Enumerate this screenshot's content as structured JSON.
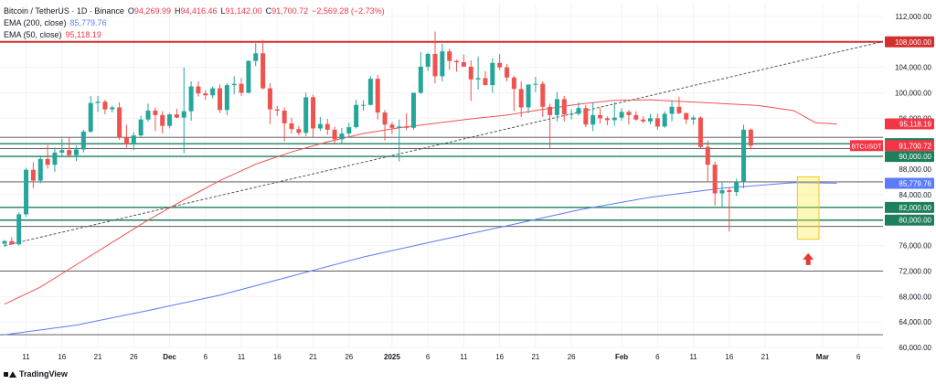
{
  "legend": {
    "symbol": "Bitcoin / TetherUS · 1D · Binance",
    "o_label": "O",
    "o_value": "94,269.99",
    "h_label": "H",
    "h_value": "94,416.46",
    "l_label": "L",
    "l_value": "91,142.00",
    "c_label": "C",
    "c_value": "91,700.72",
    "change": "−2,569.28 (−2.73%)",
    "ema200_label": "EMA (200, close)",
    "ema200_value": "85,779.76",
    "ema50_label": "EMA (50, close)",
    "ema50_value": "95,118.19"
  },
  "branding": {
    "text": "TradingView"
  },
  "colors": {
    "up": "#26a69a",
    "down": "#ef5350",
    "ema200": "#5b7cfa",
    "ema50": "#ef5350",
    "resistance": "#d32f2f",
    "support": "#1e7f5c"
  },
  "chart_data": {
    "type": "candlestick",
    "ylim": [
      60000,
      114000
    ],
    "y_ticks": [
      112000,
      108000,
      104000,
      100000,
      96000,
      92000,
      88000,
      84000,
      80000,
      76000,
      72000,
      68000,
      64000,
      60000
    ],
    "y_tick_labels": [
      "112,000.00",
      "108,000.00",
      "104,000.00",
      "100,000.00",
      "96,000.00",
      "92,000.00",
      "88,000.00",
      "84,000.00",
      "80,000.00",
      "76,000.00",
      "72,000.00",
      "68,000.00",
      "64,000.00",
      "60,000.00"
    ],
    "x_ticks": [
      {
        "label": "11",
        "i": 3
      },
      {
        "label": "16",
        "i": 8
      },
      {
        "label": "21",
        "i": 13
      },
      {
        "label": "26",
        "i": 18
      },
      {
        "label": "Dec",
        "i": 23
      },
      {
        "label": "6",
        "i": 28
      },
      {
        "label": "11",
        "i": 33
      },
      {
        "label": "16",
        "i": 38
      },
      {
        "label": "21",
        "i": 43
      },
      {
        "label": "26",
        "i": 48
      },
      {
        "label": "2025",
        "i": 54
      },
      {
        "label": "6",
        "i": 59
      },
      {
        "label": "11",
        "i": 64
      },
      {
        "label": "16",
        "i": 69
      },
      {
        "label": "21",
        "i": 74
      },
      {
        "label": "26",
        "i": 79
      },
      {
        "label": "Feb",
        "i": 86
      },
      {
        "label": "6",
        "i": 91
      },
      {
        "label": "11",
        "i": 96
      },
      {
        "label": "16",
        "i": 101
      },
      {
        "label": "21",
        "i": 106
      },
      {
        "label": "Mar",
        "i": 114
      },
      {
        "label": "6",
        "i": 119
      }
    ],
    "levels": [
      {
        "value": 108000,
        "label": "108,000.00",
        "kind": "resistance"
      },
      {
        "value": 92000,
        "label": "92,000.00",
        "kind": "support"
      },
      {
        "value": 90000,
        "label": "90,000.00",
        "kind": "support"
      },
      {
        "value": 82000,
        "label": "82,000.00",
        "kind": "support"
      },
      {
        "value": 80000,
        "label": "80,000.00",
        "kind": "support"
      },
      {
        "value": 93000,
        "label": "",
        "kind": "neutral"
      },
      {
        "value": 91250,
        "label": "",
        "kind": "neutral"
      },
      {
        "value": 86000,
        "label": "",
        "kind": "neutral"
      },
      {
        "value": 79000,
        "label": "",
        "kind": "neutral"
      },
      {
        "value": 72000,
        "label": "",
        "kind": "neutral"
      },
      {
        "value": 62000,
        "label": "",
        "kind": "neutral"
      }
    ],
    "price_tags": [
      {
        "value": 95118.19,
        "label": "95,118.19",
        "color": "#f23645"
      },
      {
        "value": 91700.72,
        "label": "91,700.72",
        "color": "#f23645",
        "badge": "BTCUSDT"
      },
      {
        "value": 85779.76,
        "label": "85,779.76",
        "color": "#5b7cfa"
      }
    ],
    "trendline": {
      "from": {
        "i": 0,
        "price": 76000
      },
      "to": {
        "i": 123,
        "price": 108200
      }
    },
    "highlight": {
      "i_from": 111,
      "i_to": 113,
      "low": 77000,
      "high": 86800
    },
    "arrow": {
      "i": 112,
      "price": 73800
    },
    "ema200": [
      [
        0,
        62000
      ],
      [
        10,
        63500
      ],
      [
        20,
        65800
      ],
      [
        30,
        68200
      ],
      [
        40,
        71200
      ],
      [
        50,
        74200
      ],
      [
        60,
        76700
      ],
      [
        70,
        79100
      ],
      [
        80,
        81600
      ],
      [
        90,
        83600
      ],
      [
        100,
        85000
      ],
      [
        110,
        85900
      ],
      [
        116,
        85800
      ]
    ],
    "ema50": [
      [
        0,
        66800
      ],
      [
        5,
        69500
      ],
      [
        10,
        73000
      ],
      [
        15,
        76500
      ],
      [
        20,
        80000
      ],
      [
        25,
        83200
      ],
      [
        30,
        86200
      ],
      [
        35,
        88800
      ],
      [
        40,
        90700
      ],
      [
        45,
        92300
      ],
      [
        50,
        93600
      ],
      [
        55,
        94500
      ],
      [
        60,
        95200
      ],
      [
        65,
        95900
      ],
      [
        70,
        96500
      ],
      [
        75,
        97400
      ],
      [
        80,
        98200
      ],
      [
        85,
        98800
      ],
      [
        90,
        98900
      ],
      [
        95,
        98600
      ],
      [
        100,
        98300
      ],
      [
        105,
        98000
      ],
      [
        110,
        97200
      ],
      [
        113,
        95300
      ],
      [
        116,
        95100
      ]
    ],
    "candles": [
      [
        76300,
        76900,
        75800,
        76700
      ],
      [
        76700,
        77300,
        76100,
        76200
      ],
      [
        76200,
        81200,
        76000,
        80900
      ],
      [
        80900,
        88200,
        80500,
        87900
      ],
      [
        87900,
        89100,
        85000,
        86200
      ],
      [
        86200,
        90000,
        85800,
        89600
      ],
      [
        89600,
        91800,
        88100,
        88700
      ],
      [
        88700,
        91400,
        87600,
        90600
      ],
      [
        90600,
        92800,
        89900,
        91000
      ],
      [
        91000,
        93000,
        89800,
        90200
      ],
      [
        90200,
        91700,
        89300,
        91100
      ],
      [
        91100,
        94200,
        90600,
        93900
      ],
      [
        93900,
        99500,
        93700,
        98400
      ],
      [
        98400,
        99500,
        97000,
        98600
      ],
      [
        98600,
        98900,
        96600,
        97400
      ],
      [
        97400,
        98000,
        96900,
        97700
      ],
      [
        97700,
        98500,
        92600,
        93000
      ],
      [
        93000,
        95000,
        91400,
        92000
      ],
      [
        92000,
        93800,
        91000,
        93300
      ],
      [
        93300,
        96400,
        93100,
        95800
      ],
      [
        95800,
        98300,
        95500,
        97200
      ],
      [
        97200,
        97700,
        94000,
        96500
      ],
      [
        96500,
        97100,
        93600,
        94800
      ],
      [
        94800,
        96800,
        94400,
        96600
      ],
      [
        96600,
        97500,
        96000,
        96100
      ],
      [
        96100,
        104000,
        90500,
        97100
      ],
      [
        97100,
        101800,
        95600,
        101000
      ],
      [
        101000,
        101800,
        99400,
        99900
      ],
      [
        99900,
        100400,
        98900,
        99600
      ],
      [
        99600,
        101000,
        99100,
        100700
      ],
      [
        100700,
        101300,
        96800,
        97300
      ],
      [
        97300,
        101500,
        96500,
        101200
      ],
      [
        101200,
        102600,
        99800,
        101400
      ],
      [
        101400,
        102300,
        99500,
        100000
      ],
      [
        100000,
        105100,
        99900,
        105000
      ],
      [
        105000,
        107800,
        104200,
        106200
      ],
      [
        106200,
        108300,
        100500,
        100700
      ],
      [
        100700,
        101500,
        95100,
        97400
      ],
      [
        97400,
        97900,
        96400,
        97200
      ],
      [
        97200,
        97700,
        92400,
        95200
      ],
      [
        95200,
        96100,
        93600,
        94300
      ],
      [
        94300,
        94800,
        93300,
        93700
      ],
      [
        93700,
        100000,
        93200,
        99300
      ],
      [
        99300,
        99700,
        93000,
        94400
      ],
      [
        94400,
        96200,
        94000,
        95100
      ],
      [
        95100,
        95900,
        93400,
        94200
      ],
      [
        94200,
        94700,
        91900,
        92700
      ],
      [
        92700,
        94500,
        92100,
        93600
      ],
      [
        93600,
        95300,
        93000,
        94600
      ],
      [
        94600,
        98900,
        94400,
        98100
      ],
      [
        98100,
        98800,
        97200,
        98100
      ],
      [
        98100,
        102600,
        98000,
        102200
      ],
      [
        102200,
        102800,
        95800,
        96900
      ],
      [
        96900,
        97300,
        92500,
        95000
      ],
      [
        95000,
        95400,
        93500,
        94500
      ],
      [
        94500,
        95800,
        89200,
        94700
      ],
      [
        94700,
        96800,
        94100,
        94500
      ],
      [
        94500,
        100000,
        94200,
        100000
      ],
      [
        100000,
        106400,
        99800,
        104100
      ],
      [
        104100,
        106300,
        103400,
        106100
      ],
      [
        106100,
        109600,
        101500,
        102600
      ],
      [
        102600,
        107700,
        101800,
        106500
      ],
      [
        106500,
        106900,
        103600,
        105000
      ],
      [
        105000,
        105200,
        103300,
        104800
      ],
      [
        104800,
        106000,
        104300,
        104100
      ],
      [
        104100,
        105100,
        98700,
        102100
      ],
      [
        102100,
        105700,
        100500,
        102300
      ],
      [
        102300,
        103400,
        101400,
        101200
      ],
      [
        101200,
        105400,
        100000,
        104700
      ],
      [
        104700,
        106100,
        103600,
        104000
      ],
      [
        104000,
        104500,
        101800,
        102400
      ],
      [
        102400,
        102700,
        97100,
        100600
      ],
      [
        100600,
        101800,
        96200,
        97700
      ],
      [
        97700,
        101300,
        96800,
        101300
      ],
      [
        101300,
        102500,
        100100,
        101400
      ],
      [
        101400,
        101800,
        96200,
        97800
      ],
      [
        97800,
        98300,
        91200,
        96500
      ],
      [
        96500,
        100100,
        95500,
        99000
      ],
      [
        99000,
        99500,
        95500,
        96600
      ],
      [
        96600,
        97400,
        95800,
        96700
      ],
      [
        96700,
        98500,
        96400,
        97600
      ],
      [
        97600,
        98100,
        94600,
        95000
      ],
      [
        95000,
        98500,
        94000,
        96500
      ],
      [
        96500,
        97600,
        95200,
        96000
      ],
      [
        96000,
        96300,
        94900,
        95700
      ],
      [
        95700,
        98500,
        94800,
        96100
      ],
      [
        96100,
        97600,
        95600,
        97000
      ],
      [
        97000,
        97300,
        95000,
        96500
      ],
      [
        96500,
        97100,
        95600,
        95800
      ],
      [
        95800,
        96300,
        95200,
        95500
      ],
      [
        95500,
        96700,
        95100,
        96000
      ],
      [
        96000,
        96700,
        94200,
        94700
      ],
      [
        94700,
        97100,
        94500,
        96700
      ],
      [
        96700,
        98800,
        95500,
        97800
      ],
      [
        97800,
        99400,
        96600,
        96800
      ],
      [
        96800,
        96900,
        95100,
        95800
      ],
      [
        95800,
        96400,
        95000,
        96100
      ],
      [
        96100,
        96300,
        91200,
        91500
      ],
      [
        91500,
        92500,
        86100,
        88700
      ],
      [
        88700,
        89200,
        82300,
        84200
      ],
      [
        84200,
        86000,
        82000,
        84700
      ],
      [
        84700,
        85200,
        78200,
        84400
      ],
      [
        84400,
        86500,
        83800,
        86000
      ],
      [
        86000,
        95000,
        85000,
        94200
      ],
      [
        94200,
        94400,
        91100,
        91700
      ]
    ]
  }
}
